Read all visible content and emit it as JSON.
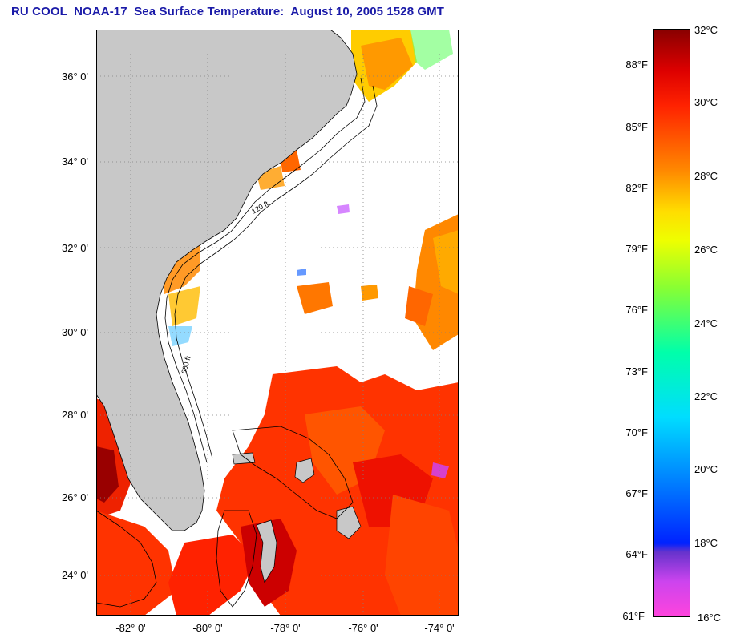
{
  "title": "RU COOL  NOAA-17  Sea Surface Temperature:  August 10, 2005 1528 GMT",
  "map": {
    "lat_ticks": [
      "36° 0'",
      "34° 0'",
      "32° 0'",
      "30° 0'",
      "28° 0'",
      "26° 0'",
      "24° 0'"
    ],
    "lon_ticks": [
      "-82° 0'",
      "-80° 0'",
      "-78° 0'",
      "-76° 0'",
      "-74° 0'"
    ],
    "contour_labels": [
      "600 ft",
      "120 ft"
    ],
    "colors": {
      "land": "#c8c8c8",
      "ocean_masked": "#ffffff",
      "grid": "#808080"
    }
  },
  "colorbar": {
    "celsius_labels": [
      "32°C",
      "30°C",
      "28°C",
      "26°C",
      "24°C",
      "22°C",
      "20°C",
      "18°C",
      "16°C"
    ],
    "fahrenheit_labels": [
      "88°F",
      "85°F",
      "82°F",
      "79°F",
      "76°F",
      "73°F",
      "70°F",
      "67°F",
      "64°F",
      "61°F"
    ],
    "range_celsius": [
      16,
      32
    ],
    "stops": [
      "#ff44dd",
      "#9933cc",
      "#0022ff",
      "#00aaff",
      "#00ffff",
      "#33ff66",
      "#ccff00",
      "#ffff00",
      "#ff9900",
      "#ff3300",
      "#ff0000",
      "#990000"
    ]
  }
}
